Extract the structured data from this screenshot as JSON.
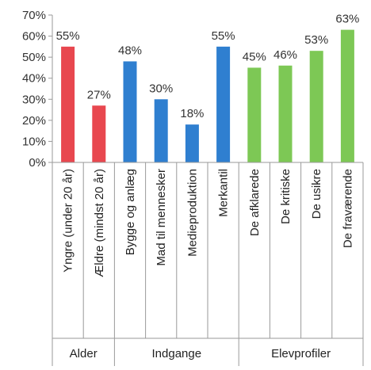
{
  "chart_data": {
    "type": "bar",
    "ylim": [
      0,
      70
    ],
    "y_ticks": [
      "0%",
      "10%",
      "20%",
      "30%",
      "40%",
      "50%",
      "60%",
      "70%"
    ],
    "y_tick_values": [
      0,
      10,
      20,
      30,
      40,
      50,
      60,
      70
    ],
    "grid": false,
    "legend": "none",
    "categories": [
      "Yngre (under 20 år)",
      "Ældre (mindst 20 år)",
      "Bygge og anlæg",
      "Mad til mennesker",
      "Medieproduktion",
      "Merkantil",
      "De afklarede",
      "De kritiske",
      "De usikre",
      "De fraværende"
    ],
    "values": [
      55,
      27,
      48,
      30,
      18,
      55,
      45,
      46,
      53,
      63
    ],
    "value_labels": [
      "55%",
      "27%",
      "48%",
      "30%",
      "18%",
      "55%",
      "45%",
      "46%",
      "53%",
      "63%"
    ],
    "groups": [
      {
        "name": "Alder",
        "count": 2,
        "color": "#e8474f"
      },
      {
        "name": "Indgange",
        "count": 4,
        "color": "#2f7fd0"
      },
      {
        "name": "Elevprofiler",
        "count": 4,
        "color": "#7dc855"
      }
    ]
  }
}
